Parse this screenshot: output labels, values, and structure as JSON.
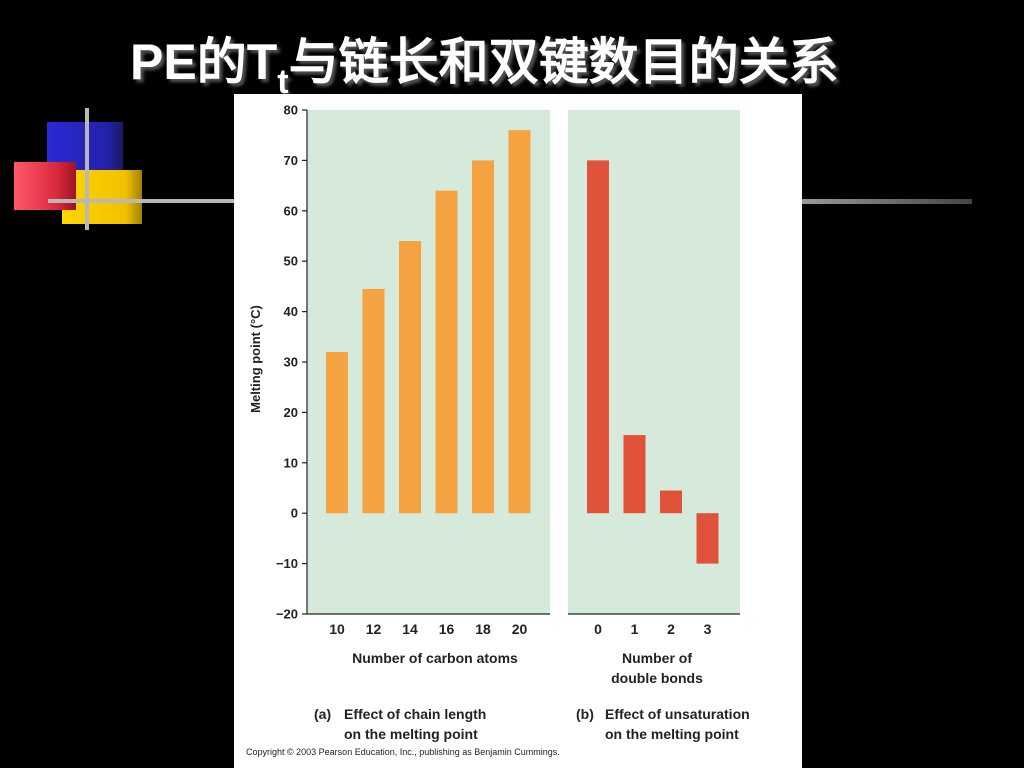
{
  "slide": {
    "title_main": "PE的T",
    "title_sub": "t",
    "title_rest": "与链长和双键数目的关系"
  },
  "figure": {
    "copyright": "Copyright © 2003 Pearson Education, Inc., publishing as Benjamin Cummings."
  },
  "colors": {
    "panel_bg": "#d6eadb",
    "bar_a": "#f4a340",
    "bar_b": "#e0533a"
  },
  "chart_data": [
    {
      "type": "bar",
      "panel_tag": "(a)",
      "caption_line1": "Effect of chain length",
      "caption_line2": "on the melting point",
      "ylabel": "Melting point (°C)",
      "xlabel": "Number of carbon atoms",
      "xlabel_line2": "",
      "ylim": [
        -20,
        80
      ],
      "yticks": [
        80,
        70,
        60,
        50,
        40,
        30,
        20,
        10,
        0,
        -10,
        -20
      ],
      "ytick_labels": [
        "80",
        "70",
        "60",
        "50",
        "40",
        "30",
        "20",
        "10",
        "0",
        "−10",
        "−20"
      ],
      "categories": [
        "10",
        "12",
        "14",
        "16",
        "18",
        "20"
      ],
      "values": [
        32,
        44.5,
        54,
        64,
        70,
        76
      ],
      "grid": false
    },
    {
      "type": "bar",
      "panel_tag": "(b)",
      "caption_line1": "Effect of unsaturation",
      "caption_line2": "on the melting point",
      "ylabel": "",
      "xlabel": "Number of",
      "xlabel_line2": "double bonds",
      "ylim": [
        -20,
        80
      ],
      "categories": [
        "0",
        "1",
        "2",
        "3"
      ],
      "values": [
        70,
        15.5,
        4.5,
        -10
      ],
      "grid": false
    }
  ]
}
